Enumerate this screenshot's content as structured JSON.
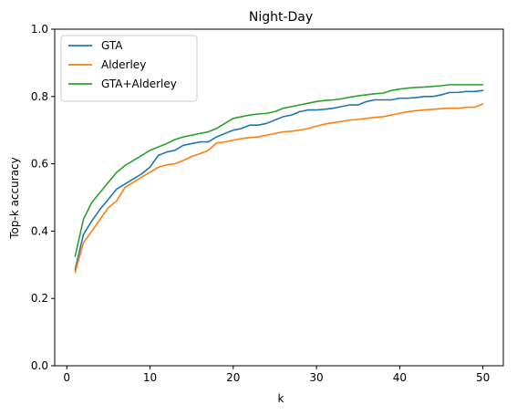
{
  "chart_data": {
    "type": "line",
    "title": "Night-Day",
    "xlabel": "k",
    "ylabel": "Top-k accuracy",
    "xlim": [
      -1.45,
      52.45
    ],
    "ylim": [
      0,
      1
    ],
    "xticks": [
      0,
      10,
      20,
      30,
      40,
      50
    ],
    "xtick_labels": [
      "0",
      "10",
      "20",
      "30",
      "40",
      "50"
    ],
    "yticks": [
      0,
      0.2,
      0.4,
      0.6,
      0.8,
      1.0
    ],
    "ytick_labels": [
      "0.0",
      "0.2",
      "0.4",
      "0.6",
      "0.8",
      "1.0"
    ],
    "grid": false,
    "legend_position": "top-left",
    "x": [
      1,
      2,
      3,
      4,
      5,
      6,
      7,
      8,
      9,
      10,
      11,
      12,
      13,
      14,
      15,
      16,
      17,
      18,
      19,
      20,
      21,
      22,
      23,
      24,
      25,
      26,
      27,
      28,
      29,
      30,
      31,
      32,
      33,
      34,
      35,
      36,
      37,
      38,
      39,
      40,
      41,
      42,
      43,
      44,
      45,
      46,
      47,
      48,
      49,
      50
    ],
    "series": [
      {
        "name": "GTA",
        "color": "#1f77b4",
        "values": [
          0.285,
          0.39,
          0.43,
          0.465,
          0.495,
          0.525,
          0.54,
          0.555,
          0.57,
          0.59,
          0.625,
          0.635,
          0.64,
          0.655,
          0.66,
          0.665,
          0.665,
          0.68,
          0.69,
          0.7,
          0.705,
          0.715,
          0.715,
          0.72,
          0.73,
          0.74,
          0.745,
          0.755,
          0.76,
          0.76,
          0.762,
          0.765,
          0.77,
          0.775,
          0.775,
          0.785,
          0.79,
          0.79,
          0.79,
          0.795,
          0.795,
          0.797,
          0.8,
          0.8,
          0.805,
          0.812,
          0.812,
          0.815,
          0.815,
          0.818
        ]
      },
      {
        "name": "Alderley",
        "color": "#ff7f0e",
        "values": [
          0.278,
          0.365,
          0.4,
          0.435,
          0.47,
          0.49,
          0.53,
          0.545,
          0.56,
          0.575,
          0.59,
          0.597,
          0.6,
          0.61,
          0.622,
          0.63,
          0.64,
          0.662,
          0.665,
          0.67,
          0.675,
          0.678,
          0.68,
          0.685,
          0.69,
          0.695,
          0.697,
          0.7,
          0.705,
          0.712,
          0.718,
          0.722,
          0.726,
          0.73,
          0.732,
          0.735,
          0.738,
          0.74,
          0.745,
          0.75,
          0.755,
          0.758,
          0.76,
          0.762,
          0.764,
          0.765,
          0.765,
          0.768,
          0.768,
          0.778
        ]
      },
      {
        "name": "GTA+Alderley",
        "color": "#2ca02c",
        "values": [
          0.325,
          0.435,
          0.485,
          0.515,
          0.545,
          0.575,
          0.595,
          0.61,
          0.625,
          0.64,
          0.65,
          0.66,
          0.672,
          0.68,
          0.685,
          0.69,
          0.695,
          0.705,
          0.72,
          0.735,
          0.74,
          0.745,
          0.748,
          0.75,
          0.755,
          0.765,
          0.77,
          0.775,
          0.78,
          0.785,
          0.788,
          0.79,
          0.793,
          0.798,
          0.802,
          0.805,
          0.808,
          0.81,
          0.818,
          0.822,
          0.825,
          0.827,
          0.828,
          0.83,
          0.832,
          0.835,
          0.835,
          0.835,
          0.835,
          0.835
        ]
      }
    ]
  }
}
